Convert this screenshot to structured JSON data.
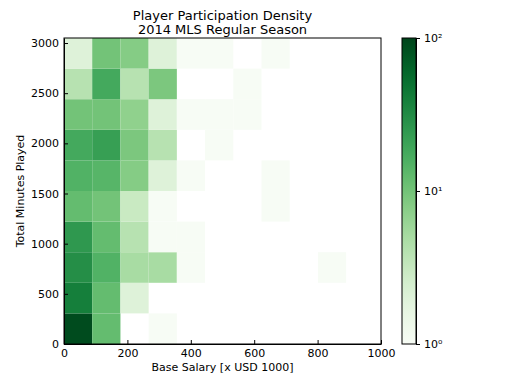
{
  "chart_data": {
    "type": "heatmap",
    "title": "Player Participation Density",
    "subtitle": "2014 MLS Regular Season",
    "x_label": "Base Salary [x USD 1000]",
    "y_label": "Total Minutes Played",
    "x_bins": [
      0,
      89,
      178,
      267,
      356,
      445,
      534,
      623,
      712,
      801,
      890
    ],
    "y_bins": [
      0,
      305,
      610,
      915,
      1220,
      1525,
      1830,
      2135,
      2440,
      2745,
      3050
    ],
    "values": [
      [
        90,
        12,
        null,
        1,
        null,
        null,
        null,
        null,
        null,
        null
      ],
      [
        40,
        12,
        2,
        null,
        null,
        null,
        null,
        null,
        null,
        null
      ],
      [
        30,
        15,
        5,
        5,
        1,
        null,
        null,
        null,
        null,
        1
      ],
      [
        25,
        12,
        4,
        1,
        1,
        null,
        null,
        null,
        null,
        null
      ],
      [
        12,
        10,
        3,
        1,
        null,
        null,
        null,
        1,
        null,
        null
      ],
      [
        15,
        14,
        8,
        2,
        1,
        null,
        null,
        1,
        null,
        null
      ],
      [
        18,
        22,
        9,
        4,
        null,
        1,
        null,
        null,
        null,
        null
      ],
      [
        10,
        10,
        7,
        2,
        1,
        1,
        1,
        null,
        null,
        null
      ],
      [
        4,
        18,
        4,
        9,
        null,
        null,
        1,
        null,
        null,
        null
      ],
      [
        2,
        10,
        8,
        2,
        1,
        1,
        null,
        1,
        null,
        null
      ]
    ],
    "color": "Greens",
    "xlim": [
      0,
      1000
    ],
    "xticks": [
      0,
      200,
      400,
      600,
      800,
      1000
    ],
    "ylim": [
      0,
      3050
    ],
    "yticks": [
      0,
      500,
      1000,
      1500,
      2000,
      2500,
      3000
    ],
    "colorbar": {
      "log": true,
      "range": [
        1,
        100
      ],
      "ticks": [
        {
          "value": 1,
          "label": "10⁰"
        },
        {
          "value": 10,
          "label": "10¹"
        },
        {
          "value": 100,
          "label": "10²"
        }
      ]
    }
  }
}
